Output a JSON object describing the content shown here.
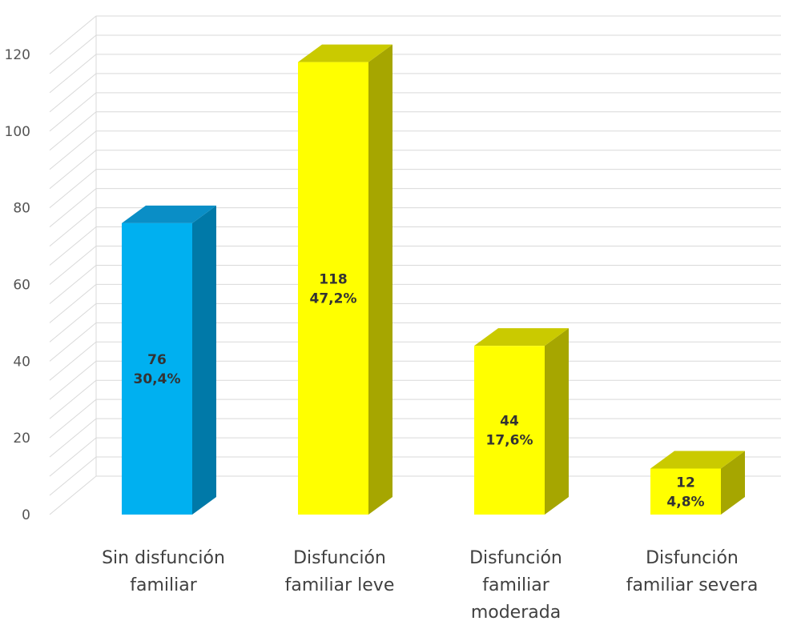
{
  "chart_data": {
    "type": "bar",
    "categories": [
      [
        "Sin disfunción",
        "familiar"
      ],
      [
        "Disfunción",
        "familiar leve"
      ],
      [
        "Disfunción",
        "familiar",
        "moderada"
      ],
      [
        "Disfunción",
        "familiar severa"
      ]
    ],
    "values": [
      76,
      118,
      44,
      12
    ],
    "data_labels": [
      [
        "76",
        "30,4%"
      ],
      [
        "118",
        "47,2%"
      ],
      [
        "44",
        "17,6%"
      ],
      [
        "12",
        "4,8%"
      ]
    ],
    "colors": [
      {
        "front": "#00b0f0",
        "side": "#0079a8",
        "top": "#0a8ec6"
      },
      {
        "front": "#ffff00",
        "side": "#a6a600",
        "top": "#caca00"
      },
      {
        "front": "#ffff00",
        "side": "#a6a600",
        "top": "#caca00"
      },
      {
        "front": "#ffff00",
        "side": "#a6a600",
        "top": "#caca00"
      }
    ],
    "y_ticks": [
      0,
      20,
      40,
      60,
      80,
      100,
      120
    ],
    "ylim": [
      0,
      120
    ],
    "minor_grid_step": 5,
    "grid": true,
    "style": "3d-column"
  }
}
